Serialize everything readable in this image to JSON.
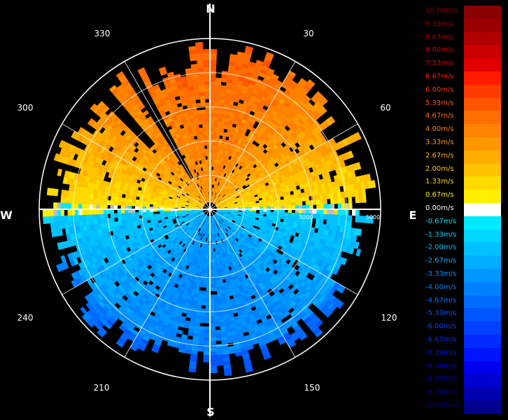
{
  "chart_data": {
    "type": "polar-radar",
    "cardinals": [
      "N",
      "E",
      "S",
      "W"
    ],
    "azimuth_labels": [
      "30",
      "60",
      "120",
      "150",
      "210",
      "240",
      "300",
      "330"
    ],
    "range_labels": [
      "3000",
      "5000"
    ],
    "range_max": 5000,
    "colorbar": {
      "unit": "m/s",
      "min": -10.0,
      "max": 10.0,
      "entries": [
        {
          "label": "10.00m/s",
          "color": "#8b0000"
        },
        {
          "label": "9.33m/s",
          "color": "#9a0000"
        },
        {
          "label": "8.67m/s",
          "color": "#b00000"
        },
        {
          "label": "8.00m/s",
          "color": "#c80000"
        },
        {
          "label": "7.33m/s",
          "color": "#e00000"
        },
        {
          "label": "6.67m/s",
          "color": "#ff1a00"
        },
        {
          "label": "6.00m/s",
          "color": "#ff3a00"
        },
        {
          "label": "5.33m/s",
          "color": "#ff5500"
        },
        {
          "label": "4.67m/s",
          "color": "#ff6e00"
        },
        {
          "label": "4.00m/s",
          "color": "#ff8200"
        },
        {
          "label": "3.33m/s",
          "color": "#ff9800"
        },
        {
          "label": "2.67m/s",
          "color": "#ffae00"
        },
        {
          "label": "2.00m/s",
          "color": "#ffc400"
        },
        {
          "label": "1.33m/s",
          "color": "#ffdb00"
        },
        {
          "label": "0.67m/s",
          "color": "#ffee00"
        },
        {
          "label": "0.00m/s",
          "color": "#ffffff"
        },
        {
          "label": "-0.67m/s",
          "color": "#00eaff"
        },
        {
          "label": "-1.33m/s",
          "color": "#00d6ff"
        },
        {
          "label": "-2.00m/s",
          "color": "#00c2ff"
        },
        {
          "label": "-2.67m/s",
          "color": "#00aeff"
        },
        {
          "label": "-3.33m/s",
          "color": "#0096ff"
        },
        {
          "label": "-4.00m/s",
          "color": "#0082ff"
        },
        {
          "label": "-4.67m/s",
          "color": "#006cff"
        },
        {
          "label": "-5.33m/s",
          "color": "#0056ff"
        },
        {
          "label": "-6.00m/s",
          "color": "#0040ff"
        },
        {
          "label": "-6.67m/s",
          "color": "#002aff"
        },
        {
          "label": "-7.33m/s",
          "color": "#0014ff"
        },
        {
          "label": "-8.00m/s",
          "color": "#0000f0"
        },
        {
          "label": "-8.67m/s",
          "color": "#0000d0"
        },
        {
          "label": "-9.33m/s",
          "color": "#0000b0"
        },
        {
          "label": "-10.00m/s",
          "color": "#000090"
        }
      ]
    }
  }
}
